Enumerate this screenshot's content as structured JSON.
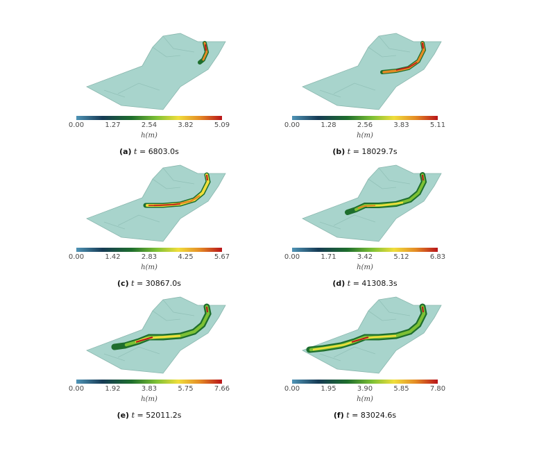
{
  "colors": {
    "terrain_fill": "#a8d4cc",
    "terrain_stroke": "#88b6ad",
    "colormap": [
      "#4f94b6",
      "#163b55",
      "#1e6e2d",
      "#7dc035",
      "#f0de3c",
      "#e48a25",
      "#b8141a"
    ]
  },
  "figure": {
    "panels": [
      {
        "id": "a",
        "ticks": [
          "0.00",
          "1.27",
          "2.54",
          "3.82",
          "5.09"
        ],
        "unit": "h(m)",
        "caption_tag": "(a)",
        "caption_var": "t",
        "caption_eq": "=",
        "caption_value": "6803.0s"
      },
      {
        "id": "b",
        "ticks": [
          "0.00",
          "1.28",
          "2.56",
          "3.83",
          "5.11"
        ],
        "unit": "h(m)",
        "caption_tag": "(b)",
        "caption_var": "t",
        "caption_eq": "=",
        "caption_value": "18029.7s"
      },
      {
        "id": "c",
        "ticks": [
          "0.00",
          "1.42",
          "2.83",
          "4.25",
          "5.67"
        ],
        "unit": "h(m)",
        "caption_tag": "(c)",
        "caption_var": "t",
        "caption_eq": "=",
        "caption_value": "30867.0s"
      },
      {
        "id": "d",
        "ticks": [
          "0.00",
          "1.71",
          "3.42",
          "5.12",
          "6.83"
        ],
        "unit": "h(m)",
        "caption_tag": "(d)",
        "caption_var": "t",
        "caption_eq": "=",
        "caption_value": "41308.3s"
      },
      {
        "id": "e",
        "ticks": [
          "0.00",
          "1.92",
          "3.83",
          "5.75",
          "7.66"
        ],
        "unit": "h(m)",
        "caption_tag": "(e)",
        "caption_var": "t",
        "caption_eq": "=",
        "caption_value": "52011.2s"
      },
      {
        "id": "f",
        "ticks": [
          "0.00",
          "1.95",
          "3.90",
          "5.85",
          "7.80"
        ],
        "unit": "h(m)",
        "caption_tag": "(f)",
        "caption_var": "t",
        "caption_eq": "=",
        "caption_value": "83024.6s"
      }
    ]
  }
}
